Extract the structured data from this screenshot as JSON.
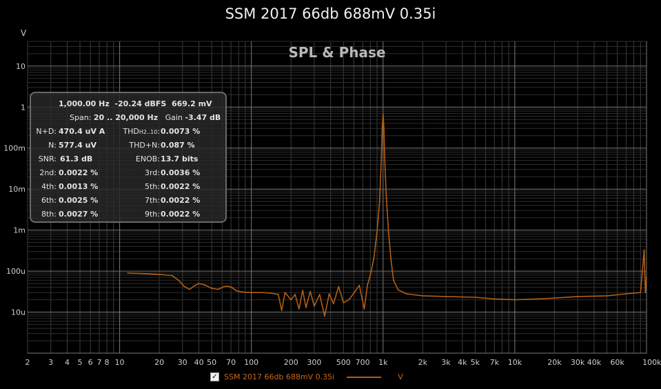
{
  "window": {
    "title": "SSM 2017 66db 688mV 0.35i"
  },
  "chart_data": {
    "type": "line",
    "title": "SPL & Phase",
    "ylabel": "V",
    "xunit": "kHz",
    "xscale": "log",
    "yscale": "log",
    "xlim": [
      2,
      100000
    ],
    "ylim": [
      1e-06,
      40
    ],
    "x_ticks": [
      {
        "v": 2,
        "label": "2"
      },
      {
        "v": 3,
        "label": "3"
      },
      {
        "v": 4,
        "label": "4"
      },
      {
        "v": 5,
        "label": "5"
      },
      {
        "v": 6,
        "label": "6"
      },
      {
        "v": 7,
        "label": "7"
      },
      {
        "v": 8,
        "label": "8"
      },
      {
        "v": 10,
        "label": "10"
      },
      {
        "v": 20,
        "label": "20"
      },
      {
        "v": 30,
        "label": "30"
      },
      {
        "v": 40,
        "label": "40"
      },
      {
        "v": 50,
        "label": "50"
      },
      {
        "v": 70,
        "label": "70"
      },
      {
        "v": 100,
        "label": "100"
      },
      {
        "v": 200,
        "label": "200"
      },
      {
        "v": 300,
        "label": "300"
      },
      {
        "v": 500,
        "label": "500"
      },
      {
        "v": 700,
        "label": "700"
      },
      {
        "v": 1000,
        "label": "1k"
      },
      {
        "v": 2000,
        "label": "2k"
      },
      {
        "v": 3000,
        "label": "3k"
      },
      {
        "v": 4000,
        "label": "4k"
      },
      {
        "v": 5000,
        "label": "5k"
      },
      {
        "v": 7000,
        "label": "7k"
      },
      {
        "v": 10000,
        "label": "10k"
      },
      {
        "v": 20000,
        "label": "20k"
      },
      {
        "v": 30000,
        "label": "30k"
      },
      {
        "v": 40000,
        "label": "40k"
      },
      {
        "v": 60000,
        "label": "60k"
      },
      {
        "v": 100000,
        "label": "100k"
      }
    ],
    "y_ticks": [
      {
        "v": 10,
        "label": "10"
      },
      {
        "v": 1,
        "label": "1"
      },
      {
        "v": 0.1,
        "label": "100m"
      },
      {
        "v": 0.01,
        "label": "10m"
      },
      {
        "v": 0.001,
        "label": "1m"
      },
      {
        "v": 0.0001,
        "label": "100u"
      },
      {
        "v": 1e-05,
        "label": "10u"
      }
    ],
    "series": [
      {
        "name": "SSM 2017 66db 688mV 0.35i",
        "unit": "V",
        "color": "#b35f14",
        "checked": true,
        "points": [
          [
            11.5,
            9e-05
          ],
          [
            15,
            8.7e-05
          ],
          [
            20,
            8.3e-05
          ],
          [
            25,
            7.8e-05
          ],
          [
            28,
            6e-05
          ],
          [
            31,
            4.2e-05
          ],
          [
            34,
            3.6e-05
          ],
          [
            37,
            4.4e-05
          ],
          [
            40,
            5e-05
          ],
          [
            45,
            4.5e-05
          ],
          [
            50,
            3.8e-05
          ],
          [
            56,
            3.6e-05
          ],
          [
            62,
            4.2e-05
          ],
          [
            66,
            4.3e-05
          ],
          [
            71,
            4e-05
          ],
          [
            77,
            3.3e-05
          ],
          [
            85,
            3.1e-05
          ],
          [
            100,
            3e-05
          ],
          [
            120,
            3e-05
          ],
          [
            140,
            2.9e-05
          ],
          [
            160,
            2.7e-05
          ],
          [
            170,
            1.1e-05
          ],
          [
            180,
            3e-05
          ],
          [
            200,
            2e-05
          ],
          [
            215,
            2.7e-05
          ],
          [
            230,
            1.2e-05
          ],
          [
            245,
            3.4e-05
          ],
          [
            260,
            1.3e-05
          ],
          [
            280,
            3.2e-05
          ],
          [
            300,
            1.4e-05
          ],
          [
            330,
            2.7e-05
          ],
          [
            360,
            8e-06
          ],
          [
            390,
            2.8e-05
          ],
          [
            420,
            1.6e-05
          ],
          [
            460,
            4.2e-05
          ],
          [
            500,
            1.7e-05
          ],
          [
            550,
            2e-05
          ],
          [
            600,
            2.9e-05
          ],
          [
            660,
            4.5e-05
          ],
          [
            720,
            1.2e-05
          ],
          [
            760,
            4.5e-05
          ],
          [
            800,
            8e-05
          ],
          [
            850,
            0.0002
          ],
          [
            900,
            0.0009
          ],
          [
            940,
            0.005
          ],
          [
            970,
            0.06
          ],
          [
            985,
            0.3
          ],
          [
            1000,
            0.6692
          ],
          [
            1015,
            0.3
          ],
          [
            1030,
            0.05
          ],
          [
            1060,
            0.006
          ],
          [
            1100,
            0.0009
          ],
          [
            1150,
            0.00018
          ],
          [
            1200,
            6e-05
          ],
          [
            1300,
            3.5e-05
          ],
          [
            1500,
            2.8e-05
          ],
          [
            2000,
            2.5e-05
          ],
          [
            3000,
            2.4e-05
          ],
          [
            5000,
            2.3e-05
          ],
          [
            7000,
            2.1e-05
          ],
          [
            10000,
            2e-05
          ],
          [
            15000,
            2.1e-05
          ],
          [
            20000,
            2.2e-05
          ],
          [
            30000,
            2.4e-05
          ],
          [
            50000,
            2.5e-05
          ],
          [
            70000,
            2.8e-05
          ],
          [
            90000,
            3e-05
          ],
          [
            96000,
            0.00033
          ],
          [
            98000,
            3e-05
          ],
          [
            100000,
            7e-05
          ]
        ]
      }
    ],
    "measurements": {
      "header": {
        "freq": "1,000.00 Hz",
        "dbfs": "-20.24 dBFS",
        "mv": "669.2 mV"
      },
      "span": {
        "label": "Span:",
        "value": "20 .. 20,000 Hz"
      },
      "gain": {
        "label": "Gain",
        "value": "-3.47 dB"
      },
      "nd": {
        "label": "N+D:",
        "value": "470.4 uV A"
      },
      "thd": {
        "label": "THD",
        "sub": "H2..10",
        "colon": ":",
        "value": "0.0073 %"
      },
      "n": {
        "label": "N:",
        "value": "577.4 uV"
      },
      "thdn": {
        "label": "THD+N:",
        "value": "0.087 %"
      },
      "snr": {
        "label": "SNR:",
        "value": "61.3 dB"
      },
      "enob": {
        "label": "ENOB:",
        "value": "13.7 bits"
      },
      "h2": {
        "label": "2nd:",
        "value": "0.0022 %"
      },
      "h3": {
        "label": "3rd:",
        "value": "0.0036 %"
      },
      "h4": {
        "label": "4th:",
        "value": "0.0013 %"
      },
      "h5": {
        "label": "5th:",
        "value": "0.0022 %"
      },
      "h6": {
        "label": "6th:",
        "value": "0.0025 %"
      },
      "h7": {
        "label": "7th:",
        "value": "0.0022 %"
      },
      "h8": {
        "label": "8th:",
        "value": "0.0027 %"
      },
      "h9": {
        "label": "9th:",
        "value": "0.0022 %"
      }
    }
  },
  "legend": {
    "check_glyph": "✓",
    "label": "SSM 2017 66db 688mV 0.35i",
    "unit": "V"
  }
}
